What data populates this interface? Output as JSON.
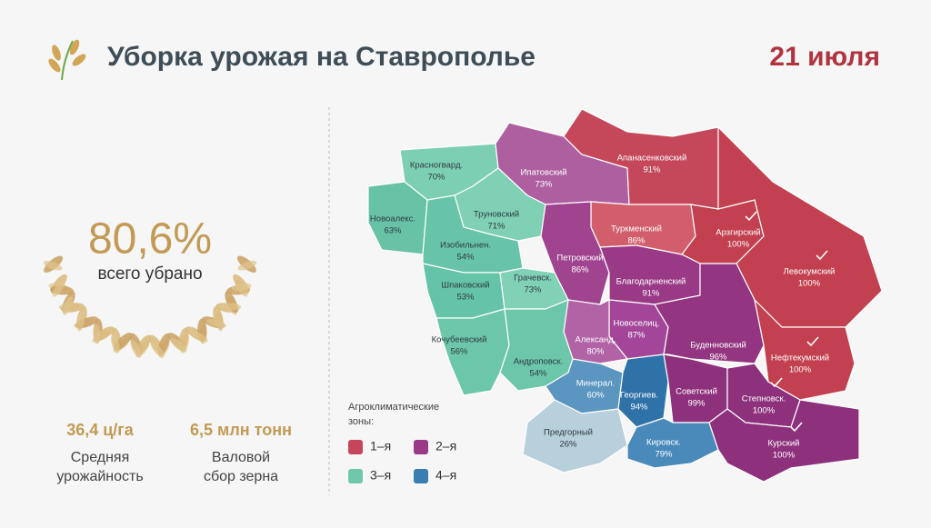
{
  "header": {
    "title": "Уборка урожая на Ставрополье",
    "date": "21 июля"
  },
  "summary": {
    "percent": "80,6%",
    "caption": "всего убрано"
  },
  "stats": [
    {
      "value": "36,4 ц/га",
      "caption": [
        "Средняя",
        "урожайность"
      ]
    },
    {
      "value": "6,5 млн тонн",
      "caption": [
        "Валовой",
        "сбор зерна"
      ]
    }
  ],
  "legend": {
    "title": [
      "Агроклиматические",
      "зоны:"
    ],
    "zones": [
      {
        "label": "1–я",
        "color": "#c5465a"
      },
      {
        "label": "2–я",
        "color": "#9a3a86"
      },
      {
        "label": "3–я",
        "color": "#6fc8ac"
      },
      {
        "label": "4–я",
        "color": "#3b7db0"
      }
    ]
  },
  "regions": [
    {
      "name": "Красногвард.",
      "value": "70%",
      "color": "#7dcfb3"
    },
    {
      "name": "Ипатовский",
      "value": "73%",
      "color": "#ad5fa0"
    },
    {
      "name": "Апанасенковский",
      "value": "91%",
      "color": "#c4485a"
    },
    {
      "name": "Новоалекс.",
      "value": "63%",
      "color": "#67c2a6"
    },
    {
      "name": "Труновский",
      "value": "71%",
      "color": "#7fd0b5"
    },
    {
      "name": "Изобильнен.",
      "value": "54%",
      "color": "#68c4a8"
    },
    {
      "name": "Туркменский",
      "value": "86%",
      "color": "#d25e6c"
    },
    {
      "name": "Арзгирский",
      "value": "100%",
      "color": "#c2404f",
      "checked": true
    },
    {
      "name": "Петровский",
      "value": "86%",
      "color": "#a0448f"
    },
    {
      "name": "Левокумский",
      "value": "100%",
      "color": "#c2404f",
      "checked": true
    },
    {
      "name": "Шпаковский",
      "value": "53%",
      "color": "#65c3a7"
    },
    {
      "name": "Грачевск.",
      "value": "73%",
      "color": "#81d1b6"
    },
    {
      "name": "Благодарненский",
      "value": "91%",
      "color": "#9a3a86"
    },
    {
      "name": "Кочубеевский",
      "value": "56%",
      "color": "#6cc6aa"
    },
    {
      "name": "Новоселиц.",
      "value": "87%",
      "color": "#a3469a"
    },
    {
      "name": "Александ.",
      "value": "80%",
      "color": "#b163a6"
    },
    {
      "name": "Буденновский",
      "value": "96%",
      "color": "#933580"
    },
    {
      "name": "Нефтекумский",
      "value": "100%",
      "color": "#c2404f",
      "checked": true
    },
    {
      "name": "Андроповск.",
      "value": "54%",
      "color": "#6cc6aa"
    },
    {
      "name": "Минерал.",
      "value": "60%",
      "color": "#5b96c0"
    },
    {
      "name": "Георгиев.",
      "value": "94%",
      "color": "#2f72a8"
    },
    {
      "name": "Советский",
      "value": "99%",
      "color": "#8e317c"
    },
    {
      "name": "Степновск.",
      "value": "100%",
      "color": "#8e317c",
      "checked": true
    },
    {
      "name": "Предгорный",
      "value": "26%",
      "color": "#b8cfdc"
    },
    {
      "name": "Кировск.",
      "value": "79%",
      "color": "#4a8abb"
    },
    {
      "name": "Курский",
      "value": "100%",
      "color": "#8e317c",
      "checked": true
    }
  ]
}
